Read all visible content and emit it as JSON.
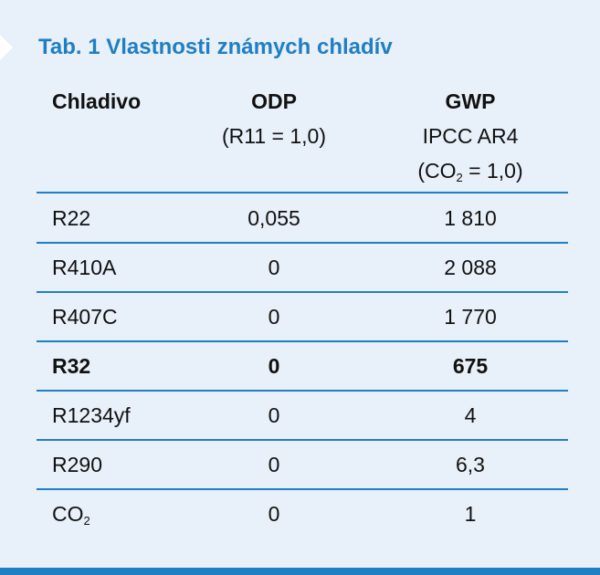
{
  "table": {
    "title": "Tab. 1 Vlastnosti známych chladív",
    "headers": {
      "refrigerant": "Chladivo",
      "odp": "ODP",
      "odp_note": "(R11 = 1,0)",
      "gwp": "GWP",
      "gwp_note": "IPCC AR4",
      "gwp_ref_open": "(CO",
      "gwp_ref_sub": "2",
      "gwp_ref_close": " = 1,0)"
    },
    "rows": [
      {
        "name": "R22",
        "name_sub": "",
        "odp": "0,055",
        "gwp": "1 810"
      },
      {
        "name": "R410A",
        "name_sub": "",
        "odp": "0",
        "gwp": "2 088"
      },
      {
        "name": "R407C",
        "name_sub": "",
        "odp": "0",
        "gwp": "1 770"
      },
      {
        "name": "R32",
        "name_sub": "",
        "odp": "0",
        "gwp": "675"
      },
      {
        "name": "R1234yf",
        "name_sub": "",
        "odp": "0",
        "gwp": "4"
      },
      {
        "name": "R290",
        "name_sub": "",
        "odp": "0",
        "gwp": "6,3"
      },
      {
        "name": "CO",
        "name_sub": "2",
        "odp": "0",
        "gwp": "1"
      }
    ],
    "highlighted_row": "R32"
  },
  "colors": {
    "background": "#e8f0f9",
    "accent": "#1f7fc4",
    "text": "#111111"
  }
}
